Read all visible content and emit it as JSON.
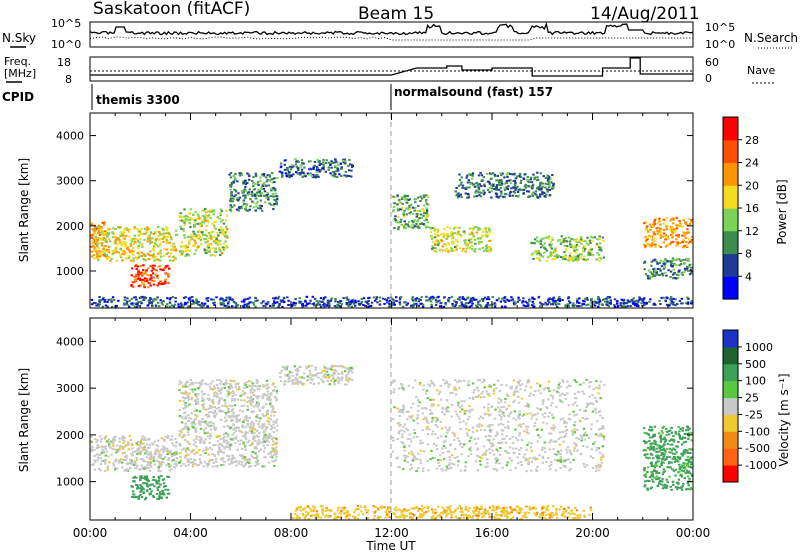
{
  "header": {
    "station": "Saskatoon (fitACF)",
    "beam": "Beam 15",
    "date": "14/Aug/2011"
  },
  "top_panels": {
    "nsky_label": "N.Sky",
    "nsky_ticks": [
      "10^5",
      "10^0"
    ],
    "nsearch_label": "N.Search",
    "nsearch_ticks": [
      "10^5",
      "10^0"
    ],
    "freq_label_1": "Freq.",
    "freq_label_2": "[MHz]",
    "freq_ticks": [
      "18",
      "8"
    ],
    "nave_label": "Nave",
    "nave_ticks": [
      "60",
      "0"
    ],
    "cpid_label": "CPID",
    "cpid_segments": [
      {
        "label": "themis 3300",
        "start_hour": 0
      },
      {
        "label": "normalsound (fast) 157",
        "start_hour": 12
      }
    ]
  },
  "axes": {
    "ylabel": "Slant Range [km]",
    "yticks": [
      "4000",
      "3000",
      "2000",
      "1000"
    ],
    "xlabel": "Time UT",
    "xticks": [
      "00:00",
      "04:00",
      "08:00",
      "12:00",
      "16:00",
      "20:00",
      "00:00"
    ]
  },
  "colorbars": {
    "power": {
      "label": "Power [dB]",
      "ticks": [
        "28",
        "24",
        "20",
        "16",
        "12",
        "8",
        "4"
      ],
      "colors": [
        "#0000ff",
        "#1e3c96",
        "#3c8c50",
        "#7dd25a",
        "#f5dc1e",
        "#ff9600",
        "#ff5000",
        "#ff0000"
      ]
    },
    "velocity": {
      "label": "Velocity [m s⁻¹]",
      "ticks": [
        "1000",
        "500",
        "100",
        "25",
        "-25",
        "-100",
        "-500",
        "-1000"
      ],
      "colors": [
        "#1e32c8",
        "#1e6432",
        "#3ca05a",
        "#5ac83c",
        "#c8c8c8",
        "#f0c832",
        "#f08c14",
        "#ff6414",
        "#ff0000"
      ]
    }
  },
  "chart_data": [
    {
      "type": "heatmap",
      "title": "Power",
      "xlabel": "Time UT",
      "ylabel": "Slant Range [km]",
      "xlim_hours": [
        0,
        24
      ],
      "ylim_km": [
        180,
        4500
      ],
      "colorbar": "Power [dB]",
      "regions": [
        {
          "t": [
            0.0,
            0.7
          ],
          "r": [
            1300,
            2100
          ],
          "v": 22
        },
        {
          "t": [
            0.0,
            3.5
          ],
          "r": [
            1200,
            2000
          ],
          "v": 18
        },
        {
          "t": [
            1.6,
            3.2
          ],
          "r": [
            600,
            1150
          ],
          "v": 27
        },
        {
          "t": [
            3.5,
            5.5
          ],
          "r": [
            1300,
            2400
          ],
          "v": 16
        },
        {
          "t": [
            5.5,
            7.5
          ],
          "r": [
            2300,
            3200
          ],
          "v": 10
        },
        {
          "t": [
            7.5,
            10.5
          ],
          "r": [
            3050,
            3500
          ],
          "v": 8
        },
        {
          "t": [
            12.0,
            13.5
          ],
          "r": [
            1900,
            2700
          ],
          "v": 12
        },
        {
          "t": [
            13.5,
            16.0
          ],
          "r": [
            1400,
            2000
          ],
          "v": 16
        },
        {
          "t": [
            14.5,
            18.5
          ],
          "r": [
            2600,
            3200
          ],
          "v": 9
        },
        {
          "t": [
            17.5,
            20.5
          ],
          "r": [
            1200,
            1800
          ],
          "v": 14
        },
        {
          "t": [
            22.0,
            24.0
          ],
          "r": [
            1500,
            2200
          ],
          "v": 22
        },
        {
          "t": [
            22.0,
            24.0
          ],
          "r": [
            800,
            1300
          ],
          "v": 10
        },
        {
          "t": [
            0.0,
            24.0
          ],
          "r": [
            180,
            450
          ],
          "v": 6
        }
      ]
    },
    {
      "type": "heatmap",
      "title": "Velocity",
      "xlabel": "Time UT",
      "ylabel": "Slant Range [km]",
      "xlim_hours": [
        0,
        24
      ],
      "ylim_km": [
        180,
        4500
      ],
      "colorbar": "Velocity [m s⁻¹]",
      "regions": [
        {
          "t": [
            0.0,
            3.5
          ],
          "r": [
            1200,
            2000
          ],
          "v": 0
        },
        {
          "t": [
            1.6,
            3.2
          ],
          "r": [
            600,
            1150
          ],
          "v": 150
        },
        {
          "t": [
            3.5,
            7.5
          ],
          "r": [
            1300,
            3200
          ],
          "v": 0
        },
        {
          "t": [
            7.5,
            10.5
          ],
          "r": [
            3050,
            3500
          ],
          "v": 0
        },
        {
          "t": [
            12.0,
            20.5
          ],
          "r": [
            1200,
            3200
          ],
          "v": 0
        },
        {
          "t": [
            22.0,
            24.0
          ],
          "r": [
            800,
            2200
          ],
          "v": 120
        },
        {
          "t": [
            8.0,
            20.0
          ],
          "r": [
            180,
            500
          ],
          "v": -80
        }
      ]
    }
  ]
}
